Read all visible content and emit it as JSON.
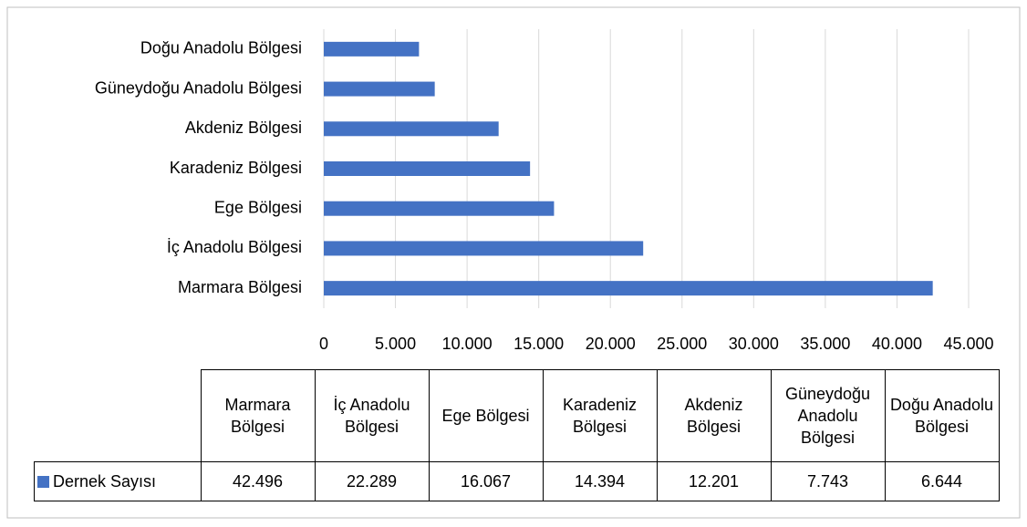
{
  "chart_data": {
    "type": "bar",
    "orientation": "horizontal",
    "categories": [
      "Marmara Bölgesi",
      "İç Anadolu Bölgesi",
      "Ege Bölgesi",
      "Karadeniz Bölgesi",
      "Akdeniz Bölgesi",
      "Güneydoğu Anadolu Bölgesi",
      "Doğu Anadolu Bölgesi"
    ],
    "series": [
      {
        "name": "Dernek Sayısı",
        "color": "#4472c4",
        "values": [
          42496,
          22289,
          16067,
          14394,
          12201,
          7743,
          6644
        ],
        "value_labels": [
          "42.496",
          "22.289",
          "16.067",
          "14.394",
          "12.201",
          "7.743",
          "6.644"
        ]
      }
    ],
    "xlim": [
      0,
      45000
    ],
    "xticks": [
      0,
      {
        "value": 5000,
        "label": "5.000"
      },
      {
        "value": 10000,
        "label": "10.000"
      },
      {
        "value": 15000,
        "label": "15.000"
      },
      {
        "value": 20000,
        "label": "20.000"
      },
      {
        "value": 25000,
        "label": "25.000"
      },
      {
        "value": 30000,
        "label": "30.000"
      },
      {
        "value": 35000,
        "label": "35.000"
      },
      {
        "value": 40000,
        "label": "40.000"
      },
      {
        "value": 45000,
        "label": "45.000"
      }
    ],
    "grid": true,
    "data_table": true
  }
}
